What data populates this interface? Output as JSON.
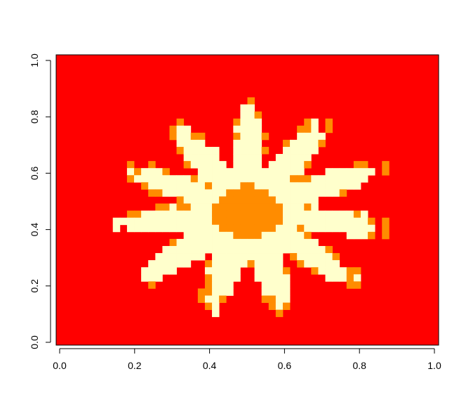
{
  "chart_data": {
    "type": "heatmap",
    "title": "",
    "xlabel": "",
    "ylabel": "",
    "xlim": [
      0.0,
      1.0
    ],
    "ylim": [
      0.0,
      1.0
    ],
    "x_ticks": [
      "0.0",
      "0.2",
      "0.4",
      "0.6",
      "0.8",
      "1.0"
    ],
    "y_ticks": [
      "0.0",
      "0.2",
      "0.4",
      "0.6",
      "0.8",
      "1.0"
    ],
    "grid": false,
    "legend": "none",
    "nx": 54,
    "ny": 41,
    "levels": [
      {
        "value": 0,
        "color": "#ff0000"
      },
      {
        "value": 1,
        "color": "#ff8c00"
      },
      {
        "value": 2,
        "color": "#ffffcc"
      }
    ],
    "shape": {
      "center": [
        0.5,
        0.46
      ],
      "core_radius": 0.09,
      "petals": 11,
      "inner_radius": 0.16,
      "outer_radius": 0.36,
      "rotation": 0.15
    }
  }
}
